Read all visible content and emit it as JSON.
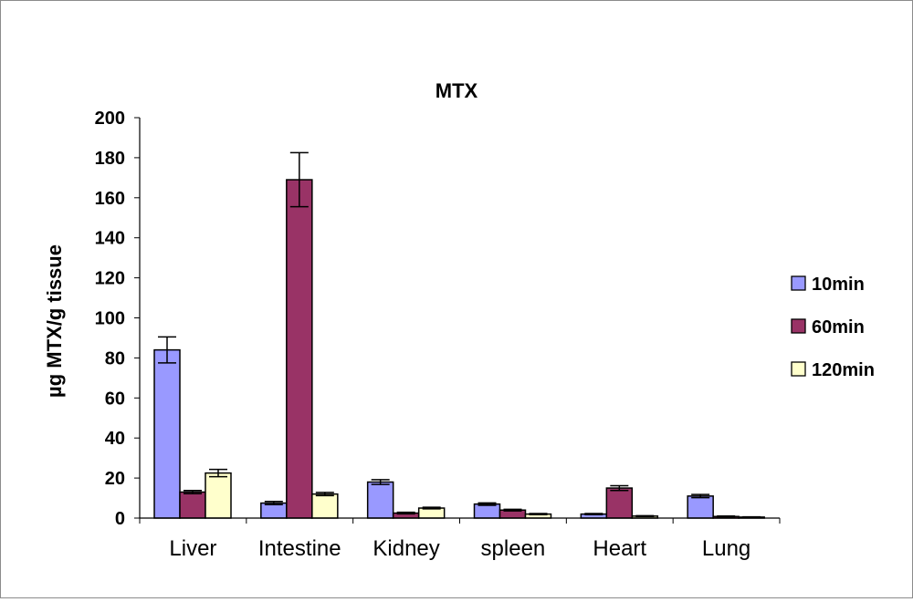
{
  "chart_data": {
    "type": "bar",
    "title": "MTX",
    "xlabel": "",
    "ylabel": "µg MTX/g tissue",
    "ylim": [
      0,
      200
    ],
    "yticks": [
      0,
      20,
      40,
      60,
      80,
      100,
      120,
      140,
      160,
      180,
      200
    ],
    "categories": [
      "Liver",
      "Intestine",
      "Kidney",
      "spleen",
      "Heart",
      "Lung"
    ],
    "series": [
      {
        "name": "10min",
        "color": "#9999ff",
        "values": [
          84,
          7.5,
          18,
          7,
          2,
          11
        ],
        "errors": [
          6.5,
          0.8,
          1.2,
          0.6,
          0.3,
          0.8
        ]
      },
      {
        "name": "60min",
        "color": "#993366",
        "values": [
          13,
          169,
          2.5,
          4,
          15,
          0.8
        ],
        "errors": [
          0.8,
          13.5,
          0.4,
          0.4,
          1.2,
          0.2
        ]
      },
      {
        "name": "120min",
        "color": "#ffffcc",
        "values": [
          22.5,
          12,
          5,
          2,
          1,
          0.5
        ],
        "errors": [
          1.8,
          0.8,
          0.4,
          0.3,
          0.2,
          0.1
        ]
      }
    ],
    "grid": false,
    "legend": "right"
  }
}
